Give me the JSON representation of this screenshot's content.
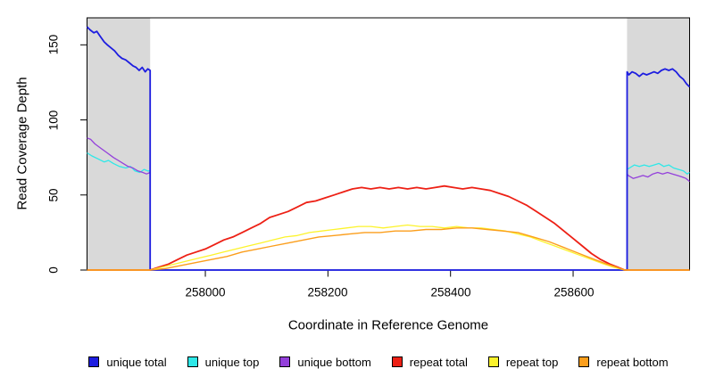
{
  "chart_data": {
    "type": "line",
    "title": "",
    "xlabel": "Coordinate in Reference Genome",
    "ylabel": "Read Coverage Depth",
    "xlim": [
      257807,
      258790
    ],
    "ylim": [
      0,
      168
    ],
    "xticks": [
      258000,
      258200,
      258400,
      258600
    ],
    "yticks": [
      0,
      50,
      100,
      150
    ],
    "grid": false,
    "legend_position": "bottom",
    "background_color": "#ffffff",
    "box_color": "#000000",
    "shaded_regions": [
      {
        "x0": 257807,
        "x1": 257910,
        "color": "#d9d9d9"
      },
      {
        "x0": 258688,
        "x1": 258790,
        "color": "#d9d9d9"
      }
    ],
    "legend": [
      {
        "label": "unique total",
        "color": "#1d1de0"
      },
      {
        "label": "unique top",
        "color": "#2ee8e8"
      },
      {
        "label": "unique bottom",
        "color": "#9440db"
      },
      {
        "label": "repeat total",
        "color": "#ed2015"
      },
      {
        "label": "repeat top",
        "color": "#fcf32c"
      },
      {
        "label": "repeat bottom",
        "color": "#fb9e1c"
      }
    ],
    "series": [
      {
        "name": "unique top",
        "color": "#2ee8e8",
        "width": 1.3,
        "points": [
          [
            257807,
            78
          ],
          [
            257815,
            76
          ],
          [
            257825,
            74
          ],
          [
            257835,
            72
          ],
          [
            257842,
            73
          ],
          [
            257850,
            71
          ],
          [
            257860,
            69
          ],
          [
            257870,
            68
          ],
          [
            257878,
            69
          ],
          [
            257885,
            66
          ],
          [
            257893,
            65
          ],
          [
            257900,
            67
          ],
          [
            257906,
            66
          ],
          [
            257910,
            66
          ],
          [
            257910,
            0
          ],
          [
            258688,
            0
          ],
          [
            258688,
            67
          ],
          [
            258692,
            68
          ],
          [
            258700,
            70
          ],
          [
            258708,
            69
          ],
          [
            258716,
            70
          ],
          [
            258724,
            69
          ],
          [
            258732,
            70
          ],
          [
            258740,
            71
          ],
          [
            258748,
            69
          ],
          [
            258756,
            70
          ],
          [
            258764,
            68
          ],
          [
            258772,
            67
          ],
          [
            258780,
            66
          ],
          [
            258786,
            64
          ],
          [
            258790,
            65
          ]
        ]
      },
      {
        "name": "unique bottom",
        "color": "#9440db",
        "width": 1.3,
        "points": [
          [
            257807,
            88
          ],
          [
            257813,
            87
          ],
          [
            257820,
            84
          ],
          [
            257830,
            81
          ],
          [
            257840,
            78
          ],
          [
            257850,
            75
          ],
          [
            257858,
            73
          ],
          [
            257866,
            71
          ],
          [
            257874,
            69
          ],
          [
            257882,
            68
          ],
          [
            257890,
            66
          ],
          [
            257898,
            65
          ],
          [
            257904,
            64
          ],
          [
            257910,
            65
          ],
          [
            257910,
            0
          ],
          [
            258688,
            0
          ],
          [
            258688,
            64
          ],
          [
            258690,
            63
          ],
          [
            258698,
            61
          ],
          [
            258706,
            62
          ],
          [
            258714,
            63
          ],
          [
            258722,
            62
          ],
          [
            258730,
            64
          ],
          [
            258738,
            65
          ],
          [
            258746,
            64
          ],
          [
            258754,
            65
          ],
          [
            258762,
            64
          ],
          [
            258770,
            63
          ],
          [
            258778,
            62
          ],
          [
            258784,
            61
          ],
          [
            258790,
            59
          ]
        ]
      },
      {
        "name": "unique total",
        "color": "#1d1de0",
        "width": 1.8,
        "points": [
          [
            257807,
            162
          ],
          [
            257812,
            160
          ],
          [
            257818,
            158
          ],
          [
            257823,
            159
          ],
          [
            257828,
            156
          ],
          [
            257835,
            152
          ],
          [
            257840,
            150
          ],
          [
            257846,
            148
          ],
          [
            257852,
            146
          ],
          [
            257858,
            143
          ],
          [
            257864,
            141
          ],
          [
            257870,
            140
          ],
          [
            257876,
            138
          ],
          [
            257882,
            136
          ],
          [
            257887,
            135
          ],
          [
            257892,
            133
          ],
          [
            257897,
            135
          ],
          [
            257902,
            132
          ],
          [
            257906,
            134
          ],
          [
            257910,
            133
          ],
          [
            257910,
            0
          ],
          [
            258688,
            0
          ],
          [
            258688,
            132
          ],
          [
            258691,
            130
          ],
          [
            258696,
            132
          ],
          [
            258702,
            131
          ],
          [
            258708,
            129
          ],
          [
            258714,
            131
          ],
          [
            258720,
            130
          ],
          [
            258726,
            131
          ],
          [
            258732,
            132
          ],
          [
            258738,
            131
          ],
          [
            258744,
            133
          ],
          [
            258750,
            134
          ],
          [
            258756,
            133
          ],
          [
            258762,
            134
          ],
          [
            258768,
            132
          ],
          [
            258774,
            129
          ],
          [
            258780,
            127
          ],
          [
            258785,
            124
          ],
          [
            258790,
            122
          ]
        ]
      },
      {
        "name": "repeat total",
        "color": "#ed2015",
        "width": 1.8,
        "points": [
          [
            257807,
            0
          ],
          [
            257910,
            0
          ],
          [
            257925,
            2
          ],
          [
            257940,
            4
          ],
          [
            257955,
            7
          ],
          [
            257970,
            10
          ],
          [
            257985,
            12
          ],
          [
            258000,
            14
          ],
          [
            258015,
            17
          ],
          [
            258030,
            20
          ],
          [
            258045,
            22
          ],
          [
            258060,
            25
          ],
          [
            258075,
            28
          ],
          [
            258090,
            31
          ],
          [
            258105,
            35
          ],
          [
            258120,
            37
          ],
          [
            258135,
            39
          ],
          [
            258150,
            42
          ],
          [
            258165,
            45
          ],
          [
            258180,
            46
          ],
          [
            258195,
            48
          ],
          [
            258210,
            50
          ],
          [
            258225,
            52
          ],
          [
            258240,
            54
          ],
          [
            258255,
            55
          ],
          [
            258270,
            54
          ],
          [
            258285,
            55
          ],
          [
            258300,
            54
          ],
          [
            258315,
            55
          ],
          [
            258330,
            54
          ],
          [
            258345,
            55
          ],
          [
            258360,
            54
          ],
          [
            258375,
            55
          ],
          [
            258390,
            56
          ],
          [
            258405,
            55
          ],
          [
            258420,
            54
          ],
          [
            258435,
            55
          ],
          [
            258450,
            54
          ],
          [
            258465,
            53
          ],
          [
            258480,
            51
          ],
          [
            258495,
            49
          ],
          [
            258510,
            46
          ],
          [
            258525,
            43
          ],
          [
            258540,
            39
          ],
          [
            258555,
            35
          ],
          [
            258570,
            31
          ],
          [
            258585,
            26
          ],
          [
            258600,
            21
          ],
          [
            258615,
            16
          ],
          [
            258630,
            11
          ],
          [
            258645,
            7
          ],
          [
            258660,
            4
          ],
          [
            258672,
            2
          ],
          [
            258684,
            0
          ],
          [
            258790,
            0
          ]
        ]
      },
      {
        "name": "repeat top",
        "color": "#fcf32c",
        "width": 1.3,
        "points": [
          [
            257807,
            0
          ],
          [
            257910,
            0
          ],
          [
            257930,
            2
          ],
          [
            257950,
            4
          ],
          [
            257970,
            6
          ],
          [
            257990,
            8
          ],
          [
            258010,
            10
          ],
          [
            258030,
            12
          ],
          [
            258050,
            14
          ],
          [
            258070,
            16
          ],
          [
            258090,
            18
          ],
          [
            258110,
            20
          ],
          [
            258130,
            22
          ],
          [
            258150,
            23
          ],
          [
            258170,
            25
          ],
          [
            258190,
            26
          ],
          [
            258210,
            27
          ],
          [
            258230,
            28
          ],
          [
            258250,
            29
          ],
          [
            258270,
            29
          ],
          [
            258290,
            28
          ],
          [
            258310,
            29
          ],
          [
            258330,
            30
          ],
          [
            258350,
            29
          ],
          [
            258370,
            29
          ],
          [
            258390,
            28
          ],
          [
            258410,
            29
          ],
          [
            258430,
            28
          ],
          [
            258450,
            28
          ],
          [
            258470,
            27
          ],
          [
            258490,
            26
          ],
          [
            258510,
            24
          ],
          [
            258530,
            22
          ],
          [
            258550,
            19
          ],
          [
            258570,
            16
          ],
          [
            258590,
            13
          ],
          [
            258610,
            10
          ],
          [
            258630,
            7
          ],
          [
            258650,
            4
          ],
          [
            258665,
            2
          ],
          [
            258684,
            0
          ],
          [
            258790,
            0
          ]
        ]
      },
      {
        "name": "repeat bottom",
        "color": "#fb9e1c",
        "width": 1.4,
        "points": [
          [
            257807,
            0
          ],
          [
            257910,
            0
          ],
          [
            257935,
            1
          ],
          [
            257960,
            3
          ],
          [
            257985,
            5
          ],
          [
            258010,
            7
          ],
          [
            258035,
            9
          ],
          [
            258060,
            12
          ],
          [
            258085,
            14
          ],
          [
            258110,
            16
          ],
          [
            258135,
            18
          ],
          [
            258160,
            20
          ],
          [
            258185,
            22
          ],
          [
            258210,
            23
          ],
          [
            258235,
            24
          ],
          [
            258260,
            25
          ],
          [
            258285,
            25
          ],
          [
            258310,
            26
          ],
          [
            258335,
            26
          ],
          [
            258360,
            27
          ],
          [
            258385,
            27
          ],
          [
            258410,
            28
          ],
          [
            258435,
            28
          ],
          [
            258460,
            27
          ],
          [
            258485,
            26
          ],
          [
            258510,
            25
          ],
          [
            258535,
            22
          ],
          [
            258560,
            19
          ],
          [
            258585,
            15
          ],
          [
            258610,
            11
          ],
          [
            258635,
            7
          ],
          [
            258655,
            4
          ],
          [
            258670,
            2
          ],
          [
            258684,
            0
          ],
          [
            258790,
            0
          ]
        ]
      }
    ]
  }
}
